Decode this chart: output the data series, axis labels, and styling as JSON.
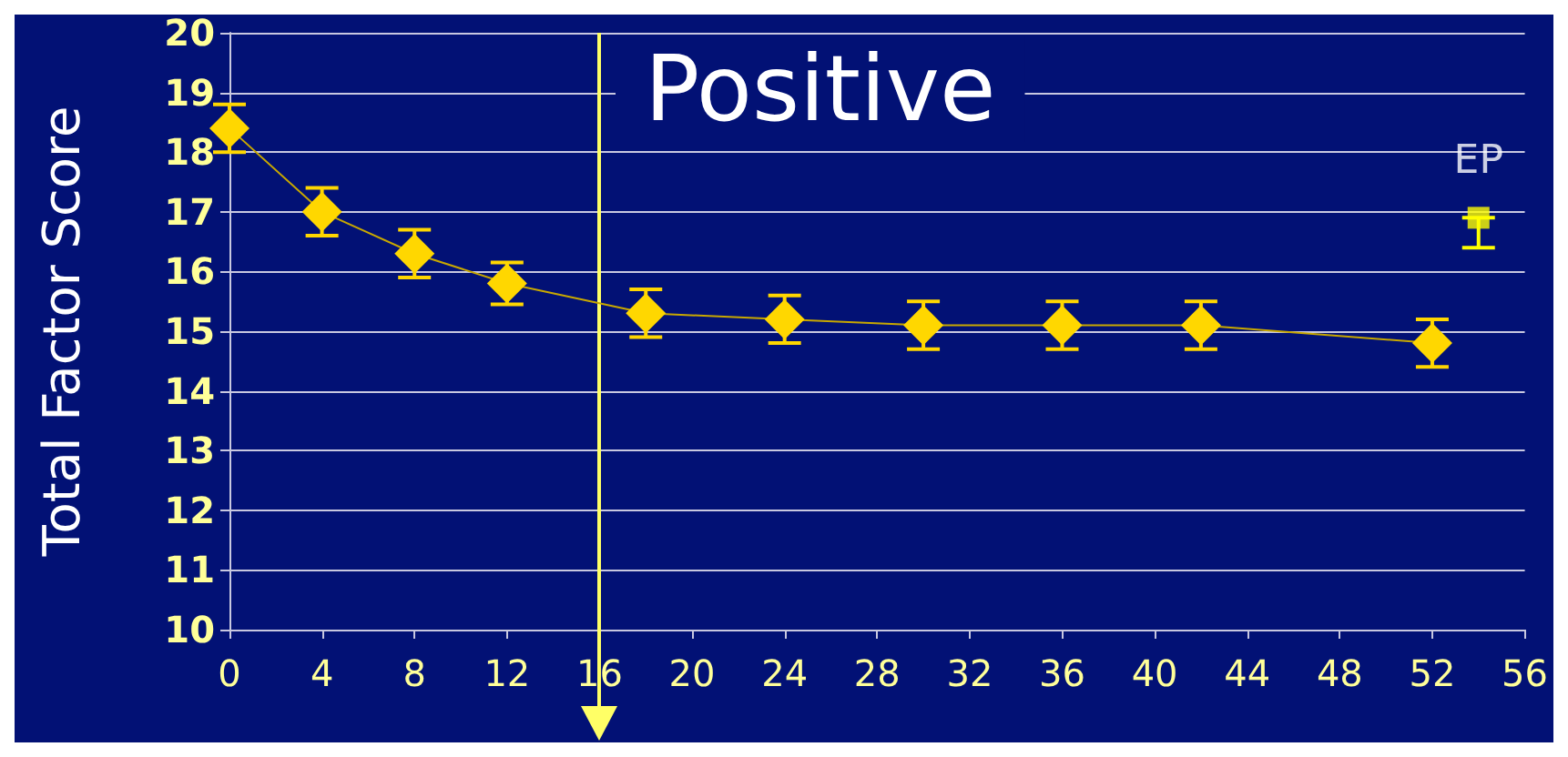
{
  "chart_data": {
    "type": "line",
    "title": "Positive",
    "ylabel": "Total Factor Score",
    "xlim": [
      0,
      56
    ],
    "xticks": [
      0,
      4,
      8,
      12,
      16,
      20,
      24,
      28,
      32,
      36,
      40,
      44,
      48,
      52,
      56
    ],
    "ylim": [
      10,
      20
    ],
    "yticks": [
      10,
      11,
      12,
      13,
      14,
      15,
      16,
      17,
      18,
      19,
      20
    ],
    "grid": "y",
    "legend": false,
    "marker": "diamond",
    "line_style": "solid",
    "series": [
      {
        "color": "#ffd700",
        "x": [
          0,
          4,
          8,
          12,
          18,
          24,
          30,
          36,
          42,
          52
        ],
        "values": [
          18.4,
          17.0,
          16.3,
          15.8,
          15.3,
          15.2,
          15.1,
          15.1,
          15.1,
          14.8
        ],
        "errors": [
          0.4,
          0.4,
          0.4,
          0.35,
          0.4,
          0.4,
          0.4,
          0.4,
          0.4,
          0.4
        ]
      },
      {
        "name": "EP",
        "type": "scatter",
        "marker": "square",
        "color": "#ffff00",
        "x": [
          54
        ],
        "values": [
          16.9
        ],
        "errors": [
          [
            16.4,
            16.9
          ]
        ]
      }
    ],
    "ref_lines": [
      {
        "axis": "x",
        "value": 16,
        "label": null,
        "color": "#ffff66"
      }
    ]
  }
}
